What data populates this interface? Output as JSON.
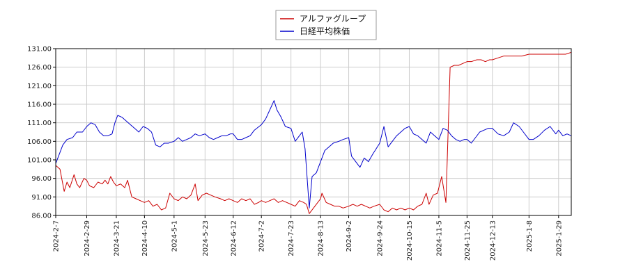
{
  "chart_data": {
    "type": "line",
    "title": "",
    "xlabel": "",
    "ylabel": "",
    "ylim": [
      86.0,
      131.0
    ],
    "y_ticks": [
      "86.00",
      "91.00",
      "96.00",
      "101.00",
      "106.00",
      "111.00",
      "116.00",
      "121.00",
      "126.00",
      "131.00"
    ],
    "x_ticks": [
      "2024-2-7",
      "2024-2-29",
      "2024-3-21",
      "2024-4-10",
      "2024-5-1",
      "2024-5-23",
      "2024-6-12",
      "2024-7-2",
      "2024-7-23",
      "2024-8-13",
      "2024-9-2",
      "2024-9-24",
      "2024-10-15",
      "2024-11-5",
      "2024-11-25",
      "2024-12-13",
      "2025-1-8",
      "2025-1-29"
    ],
    "x_range": [
      "2024-02-07",
      "2025-02-07"
    ],
    "grid": true,
    "legend_position": "top-center",
    "series": [
      {
        "name": "アルファグループ",
        "color": "#cc0000",
        "points": [
          [
            "2024-02-07",
            99.5
          ],
          [
            "2024-02-10",
            98.5
          ],
          [
            "2024-02-13",
            92.5
          ],
          [
            "2024-02-15",
            95.0
          ],
          [
            "2024-02-17",
            93.5
          ],
          [
            "2024-02-20",
            97.0
          ],
          [
            "2024-02-22",
            94.5
          ],
          [
            "2024-02-24",
            93.5
          ],
          [
            "2024-02-27",
            96.0
          ],
          [
            "2024-02-29",
            95.5
          ],
          [
            "2024-03-02",
            94.0
          ],
          [
            "2024-03-05",
            93.5
          ],
          [
            "2024-03-08",
            95.0
          ],
          [
            "2024-03-11",
            94.5
          ],
          [
            "2024-03-13",
            95.5
          ],
          [
            "2024-03-15",
            94.5
          ],
          [
            "2024-03-17",
            96.5
          ],
          [
            "2024-03-19",
            95.0
          ],
          [
            "2024-03-21",
            94.0
          ],
          [
            "2024-03-24",
            94.5
          ],
          [
            "2024-03-27",
            93.5
          ],
          [
            "2024-03-29",
            95.5
          ],
          [
            "2024-04-01",
            91.0
          ],
          [
            "2024-04-04",
            90.5
          ],
          [
            "2024-04-07",
            90.0
          ],
          [
            "2024-04-10",
            89.5
          ],
          [
            "2024-04-13",
            90.0
          ],
          [
            "2024-04-16",
            88.5
          ],
          [
            "2024-04-19",
            89.0
          ],
          [
            "2024-04-22",
            87.5
          ],
          [
            "2024-04-25",
            88.0
          ],
          [
            "2024-04-28",
            92.0
          ],
          [
            "2024-05-01",
            90.5
          ],
          [
            "2024-05-04",
            90.0
          ],
          [
            "2024-05-07",
            91.0
          ],
          [
            "2024-05-10",
            90.5
          ],
          [
            "2024-05-13",
            91.5
          ],
          [
            "2024-05-16",
            94.5
          ],
          [
            "2024-05-18",
            90.0
          ],
          [
            "2024-05-21",
            91.5
          ],
          [
            "2024-05-24",
            92.0
          ],
          [
            "2024-05-27",
            91.5
          ],
          [
            "2024-05-30",
            91.0
          ],
          [
            "2024-06-03",
            90.5
          ],
          [
            "2024-06-06",
            90.0
          ],
          [
            "2024-06-09",
            90.5
          ],
          [
            "2024-06-12",
            90.0
          ],
          [
            "2024-06-15",
            89.5
          ],
          [
            "2024-06-18",
            90.5
          ],
          [
            "2024-06-21",
            90.0
          ],
          [
            "2024-06-24",
            90.5
          ],
          [
            "2024-06-27",
            89.0
          ],
          [
            "2024-06-30",
            89.5
          ],
          [
            "2024-07-02",
            90.0
          ],
          [
            "2024-07-05",
            89.5
          ],
          [
            "2024-07-08",
            90.0
          ],
          [
            "2024-07-11",
            90.5
          ],
          [
            "2024-07-14",
            89.5
          ],
          [
            "2024-07-17",
            90.0
          ],
          [
            "2024-07-20",
            89.5
          ],
          [
            "2024-07-23",
            89.0
          ],
          [
            "2024-07-26",
            88.5
          ],
          [
            "2024-07-29",
            90.0
          ],
          [
            "2024-08-01",
            89.5
          ],
          [
            "2024-08-03",
            89.0
          ],
          [
            "2024-08-05",
            86.5
          ],
          [
            "2024-08-08",
            88.0
          ],
          [
            "2024-08-11",
            89.5
          ],
          [
            "2024-08-13",
            90.5
          ],
          [
            "2024-08-14",
            92.0
          ],
          [
            "2024-08-17",
            89.5
          ],
          [
            "2024-08-20",
            89.0
          ],
          [
            "2024-08-23",
            88.5
          ],
          [
            "2024-08-26",
            88.5
          ],
          [
            "2024-08-29",
            88.0
          ],
          [
            "2024-09-02",
            88.5
          ],
          [
            "2024-09-05",
            89.0
          ],
          [
            "2024-09-08",
            88.5
          ],
          [
            "2024-09-11",
            89.0
          ],
          [
            "2024-09-14",
            88.5
          ],
          [
            "2024-09-17",
            88.0
          ],
          [
            "2024-09-20",
            88.5
          ],
          [
            "2024-09-24",
            89.0
          ],
          [
            "2024-09-27",
            87.5
          ],
          [
            "2024-09-30",
            87.0
          ],
          [
            "2024-10-03",
            88.0
          ],
          [
            "2024-10-06",
            87.5
          ],
          [
            "2024-10-09",
            88.0
          ],
          [
            "2024-10-12",
            87.5
          ],
          [
            "2024-10-15",
            88.0
          ],
          [
            "2024-10-18",
            87.5
          ],
          [
            "2024-10-21",
            88.5
          ],
          [
            "2024-10-24",
            89.0
          ],
          [
            "2024-10-27",
            92.0
          ],
          [
            "2024-10-29",
            89.0
          ],
          [
            "2024-11-01",
            91.5
          ],
          [
            "2024-11-04",
            92.0
          ],
          [
            "2024-11-07",
            96.5
          ],
          [
            "2024-11-10",
            89.5
          ],
          [
            "2024-11-13",
            126.0
          ],
          [
            "2024-11-16",
            126.5
          ],
          [
            "2024-11-19",
            126.5
          ],
          [
            "2024-11-22",
            127.0
          ],
          [
            "2024-11-25",
            127.5
          ],
          [
            "2024-11-28",
            127.5
          ],
          [
            "2024-12-02",
            128.0
          ],
          [
            "2024-12-05",
            128.0
          ],
          [
            "2024-12-08",
            127.5
          ],
          [
            "2024-12-11",
            128.0
          ],
          [
            "2024-12-13",
            128.0
          ],
          [
            "2024-12-17",
            128.5
          ],
          [
            "2024-12-21",
            129.0
          ],
          [
            "2024-12-25",
            129.0
          ],
          [
            "2024-12-29",
            129.0
          ],
          [
            "2025-01-03",
            129.0
          ],
          [
            "2025-01-08",
            129.5
          ],
          [
            "2025-01-13",
            129.5
          ],
          [
            "2025-01-18",
            129.5
          ],
          [
            "2025-01-23",
            129.5
          ],
          [
            "2025-01-29",
            129.5
          ],
          [
            "2025-02-03",
            129.5
          ],
          [
            "2025-02-07",
            130.0
          ]
        ]
      },
      {
        "name": "日経平均株価",
        "color": "#0000cc",
        "points": [
          [
            "2024-02-07",
            100.0
          ],
          [
            "2024-02-09",
            102.0
          ],
          [
            "2024-02-12",
            105.0
          ],
          [
            "2024-02-15",
            106.5
          ],
          [
            "2024-02-19",
            107.0
          ],
          [
            "2024-02-22",
            108.5
          ],
          [
            "2024-02-26",
            108.5
          ],
          [
            "2024-02-29",
            110.0
          ],
          [
            "2024-03-03",
            111.0
          ],
          [
            "2024-03-06",
            110.5
          ],
          [
            "2024-03-09",
            108.5
          ],
          [
            "2024-03-12",
            107.5
          ],
          [
            "2024-03-15",
            107.5
          ],
          [
            "2024-03-18",
            108.0
          ],
          [
            "2024-03-20",
            111.0
          ],
          [
            "2024-03-22",
            113.0
          ],
          [
            "2024-03-25",
            112.5
          ],
          [
            "2024-03-28",
            111.5
          ],
          [
            "2024-03-31",
            110.5
          ],
          [
            "2024-04-03",
            109.5
          ],
          [
            "2024-04-06",
            108.5
          ],
          [
            "2024-04-09",
            110.0
          ],
          [
            "2024-04-12",
            109.5
          ],
          [
            "2024-04-15",
            108.5
          ],
          [
            "2024-04-18",
            105.0
          ],
          [
            "2024-04-21",
            104.5
          ],
          [
            "2024-04-24",
            105.5
          ],
          [
            "2024-04-27",
            105.5
          ],
          [
            "2024-05-01",
            106.0
          ],
          [
            "2024-05-04",
            107.0
          ],
          [
            "2024-05-07",
            106.0
          ],
          [
            "2024-05-10",
            106.5
          ],
          [
            "2024-05-13",
            107.0
          ],
          [
            "2024-05-16",
            108.0
          ],
          [
            "2024-05-19",
            107.5
          ],
          [
            "2024-05-23",
            108.0
          ],
          [
            "2024-05-26",
            107.0
          ],
          [
            "2024-05-29",
            106.5
          ],
          [
            "2024-06-01",
            107.0
          ],
          [
            "2024-06-04",
            107.5
          ],
          [
            "2024-06-07",
            107.5
          ],
          [
            "2024-06-10",
            108.0
          ],
          [
            "2024-06-12",
            108.0
          ],
          [
            "2024-06-15",
            106.5
          ],
          [
            "2024-06-18",
            106.5
          ],
          [
            "2024-06-21",
            107.0
          ],
          [
            "2024-06-24",
            107.5
          ],
          [
            "2024-06-27",
            109.0
          ],
          [
            "2024-07-02",
            110.5
          ],
          [
            "2024-07-05",
            112.0
          ],
          [
            "2024-07-08",
            114.5
          ],
          [
            "2024-07-11",
            117.0
          ],
          [
            "2024-07-13",
            114.5
          ],
          [
            "2024-07-16",
            112.5
          ],
          [
            "2024-07-19",
            110.0
          ],
          [
            "2024-07-23",
            109.5
          ],
          [
            "2024-07-26",
            106.0
          ],
          [
            "2024-07-29",
            107.5
          ],
          [
            "2024-07-31",
            108.5
          ],
          [
            "2024-08-02",
            104.0
          ],
          [
            "2024-08-05",
            88.0
          ],
          [
            "2024-08-07",
            96.5
          ],
          [
            "2024-08-10",
            97.5
          ],
          [
            "2024-08-13",
            100.5
          ],
          [
            "2024-08-16",
            103.5
          ],
          [
            "2024-08-19",
            104.5
          ],
          [
            "2024-08-22",
            105.5
          ],
          [
            "2024-08-26",
            106.0
          ],
          [
            "2024-08-29",
            106.5
          ],
          [
            "2024-09-02",
            107.0
          ],
          [
            "2024-09-04",
            102.0
          ],
          [
            "2024-09-07",
            100.5
          ],
          [
            "2024-09-10",
            99.0
          ],
          [
            "2024-09-13",
            101.5
          ],
          [
            "2024-09-16",
            100.5
          ],
          [
            "2024-09-19",
            102.5
          ],
          [
            "2024-09-24",
            105.5
          ],
          [
            "2024-09-27",
            110.0
          ],
          [
            "2024-09-30",
            104.5
          ],
          [
            "2024-10-03",
            106.0
          ],
          [
            "2024-10-06",
            107.5
          ],
          [
            "2024-10-09",
            108.5
          ],
          [
            "2024-10-12",
            109.5
          ],
          [
            "2024-10-15",
            110.0
          ],
          [
            "2024-10-18",
            108.0
          ],
          [
            "2024-10-21",
            107.5
          ],
          [
            "2024-10-24",
            106.5
          ],
          [
            "2024-10-27",
            105.5
          ],
          [
            "2024-10-30",
            108.5
          ],
          [
            "2024-11-02",
            107.5
          ],
          [
            "2024-11-05",
            106.5
          ],
          [
            "2024-11-08",
            109.5
          ],
          [
            "2024-11-11",
            109.0
          ],
          [
            "2024-11-14",
            107.5
          ],
          [
            "2024-11-17",
            106.5
          ],
          [
            "2024-11-20",
            106.0
          ],
          [
            "2024-11-23",
            106.5
          ],
          [
            "2024-11-25",
            106.5
          ],
          [
            "2024-11-28",
            105.5
          ],
          [
            "2024-12-01",
            107.0
          ],
          [
            "2024-12-04",
            108.5
          ],
          [
            "2024-12-07",
            109.0
          ],
          [
            "2024-12-10",
            109.5
          ],
          [
            "2024-12-13",
            109.5
          ],
          [
            "2024-12-17",
            108.0
          ],
          [
            "2024-12-21",
            107.5
          ],
          [
            "2024-12-25",
            108.5
          ],
          [
            "2024-12-28",
            111.0
          ],
          [
            "2025-01-01",
            110.0
          ],
          [
            "2025-01-04",
            108.5
          ],
          [
            "2025-01-08",
            106.5
          ],
          [
            "2025-01-11",
            106.5
          ],
          [
            "2025-01-15",
            107.5
          ],
          [
            "2025-01-19",
            109.0
          ],
          [
            "2025-01-23",
            110.0
          ],
          [
            "2025-01-27",
            108.0
          ],
          [
            "2025-01-29",
            109.0
          ],
          [
            "2025-02-01",
            107.5
          ],
          [
            "2025-02-04",
            108.0
          ],
          [
            "2025-02-07",
            107.5
          ]
        ]
      }
    ]
  }
}
